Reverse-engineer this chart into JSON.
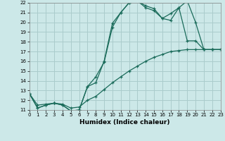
{
  "xlabel": "Humidex (Indice chaleur)",
  "xlim": [
    0,
    23
  ],
  "ylim": [
    11,
    22
  ],
  "xticks": [
    0,
    1,
    2,
    3,
    4,
    5,
    6,
    7,
    8,
    9,
    10,
    11,
    12,
    13,
    14,
    15,
    16,
    17,
    18,
    19,
    20,
    21,
    22,
    23
  ],
  "yticks": [
    11,
    12,
    13,
    14,
    15,
    16,
    17,
    18,
    19,
    20,
    21,
    22
  ],
  "bg_color": "#cce8e8",
  "grid_color": "#aacccc",
  "line_color": "#1a6b5a",
  "line1_x": [
    0,
    1,
    2,
    3,
    4,
    5,
    6,
    7,
    8,
    9,
    10,
    11,
    12,
    13,
    14,
    15,
    16,
    17,
    18,
    19,
    20,
    21,
    22,
    23
  ],
  "line1_y": [
    12.7,
    11.2,
    11.5,
    11.7,
    11.5,
    10.9,
    11.0,
    13.4,
    13.8,
    16.0,
    19.9,
    21.0,
    22.0,
    22.2,
    21.7,
    21.4,
    20.4,
    20.9,
    21.5,
    22.2,
    20.0,
    17.2,
    17.2,
    17.2
  ],
  "line2_x": [
    0,
    1,
    2,
    3,
    4,
    5,
    6,
    7,
    8,
    9,
    10,
    11,
    12,
    13,
    14,
    15,
    16,
    17,
    18,
    19,
    20,
    21,
    22,
    23
  ],
  "line2_y": [
    12.7,
    11.2,
    11.5,
    11.7,
    11.5,
    10.9,
    11.0,
    13.4,
    14.4,
    15.9,
    19.5,
    21.0,
    22.0,
    22.2,
    21.5,
    21.2,
    20.4,
    20.2,
    21.5,
    18.1,
    18.1,
    17.2,
    17.2,
    17.2
  ],
  "line3_x": [
    0,
    1,
    2,
    3,
    4,
    5,
    6,
    7,
    8,
    9,
    10,
    11,
    12,
    13,
    14,
    15,
    16,
    17,
    18,
    19,
    20,
    21,
    22,
    23
  ],
  "line3_y": [
    12.7,
    11.5,
    11.6,
    11.7,
    11.6,
    11.2,
    11.3,
    12.0,
    12.4,
    13.1,
    13.8,
    14.4,
    15.0,
    15.5,
    16.0,
    16.4,
    16.7,
    17.0,
    17.1,
    17.2,
    17.2,
    17.2,
    17.2,
    17.2
  ]
}
